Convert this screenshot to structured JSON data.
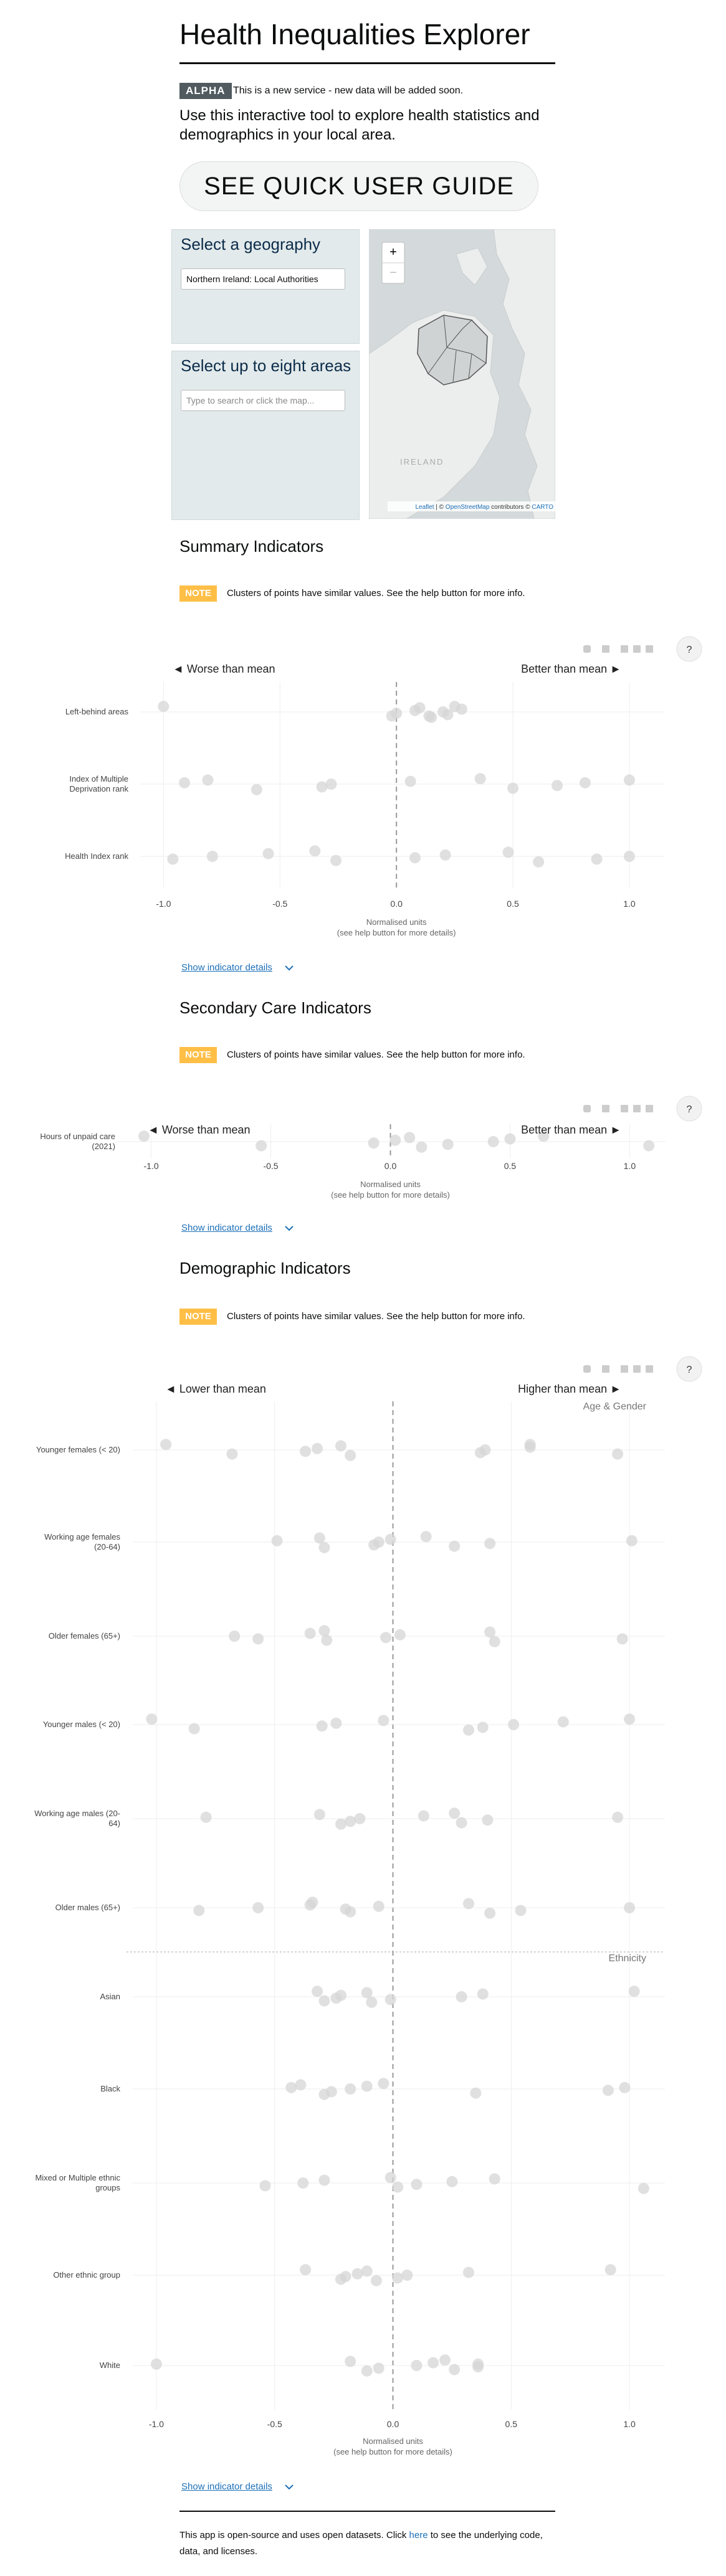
{
  "header": {
    "title": "Health Inequalities Explorer",
    "badge": "ALPHA",
    "notice": "This is a new service - new data will be added soon.",
    "intro": "Use this interactive tool to explore health statistics and demographics in your local area."
  },
  "guide_button": "SEE QUICK USER GUIDE",
  "geography": {
    "title": "Select a geography",
    "selected": "Northern Ireland: Local Authorities"
  },
  "areas": {
    "title": "Select up to eight areas",
    "placeholder": "Type to search or click the map..."
  },
  "map": {
    "zoom_in": "+",
    "zoom_out": "−",
    "country_label": "IRELAND",
    "attribution": [
      "Leaflet",
      " | © ",
      "OpenStreetMap",
      " contributors © ",
      "CARTO"
    ]
  },
  "sections": [
    {
      "title": "Summary Indicators",
      "note_badge": "NOTE",
      "note": "Clusters of points have similar values. See the help button for more info.",
      "help": "?",
      "details": "Show indicator details",
      "chart": {
        "type": "scatter",
        "left_label": "◄ Worse than mean",
        "right_label": "Better than mean ►",
        "color": "#d6d6d6",
        "zero_line": true,
        "grid": true,
        "xlim": [
          -1.1,
          1.15
        ],
        "xticks": [
          {
            "value": -1,
            "label": "-1.0"
          },
          -0.5,
          {
            "value": 0,
            "label": "0.0"
          },
          0.5,
          {
            "value": 1,
            "label": "1.0"
          }
        ],
        "xlabel": [
          "Normalised units",
          "(see help button for more details)"
        ],
        "groups": [
          {
            "categories": [
              "Left-behind areas",
              "Index of Multiple Deprivation rank",
              "Health Index rank"
            ],
            "values": [
              [
                -1.0,
                -0.02,
                0.0,
                0.08,
                0.1,
                0.15,
                0.22,
                0.2,
                0.28,
                0.25,
                0.14
              ],
              [
                -0.91,
                -0.81,
                -0.6,
                -0.32,
                -0.28,
                0.06,
                0.36,
                0.5,
                0.69,
                0.81,
                1.0
              ],
              [
                -0.96,
                -0.79,
                -0.55,
                -0.35,
                -0.26,
                0.08,
                0.21,
                0.48,
                0.61,
                0.86,
                1.0
              ]
            ]
          }
        ]
      }
    },
    {
      "title": "Secondary Care Indicators",
      "note_badge": "NOTE",
      "note": "Clusters of points have similar values. See the help button for more info.",
      "help": "?",
      "details": "Show indicator details",
      "chart": {
        "type": "scatter",
        "left_label": "◄ Worse than mean",
        "right_label": "Better than mean ►",
        "color": "#d6d6d6",
        "zero_line": true,
        "grid": true,
        "xlim": [
          -1.15,
          1.15
        ],
        "xticks": [
          {
            "value": -1,
            "label": "-1.0"
          },
          -0.5,
          {
            "value": 0,
            "label": "0.0"
          },
          0.5,
          {
            "value": 1,
            "label": "1.0"
          }
        ],
        "xlabel": [
          "Normalised units",
          "(see help button for more details)"
        ],
        "groups": [
          {
            "categories": [
              "Hours of unpaid care (2021)"
            ],
            "values": [
              [
                -1.03,
                -0.54,
                -0.07,
                0.02,
                0.08,
                0.13,
                0.24,
                0.43,
                0.5,
                0.64,
                1.08
              ]
            ]
          }
        ]
      }
    },
    {
      "title": "Demographic Indicators",
      "note_badge": "NOTE",
      "note": "Clusters of points have similar values. See the help button for more info.",
      "help": "?",
      "details": "Show indicator details",
      "chart": {
        "type": "scatter",
        "left_label": "◄ Lower than mean",
        "right_label": "Higher than mean ►",
        "color": "#d6d6d6",
        "zero_line": true,
        "grid": true,
        "xlim": [
          -1.1,
          1.15
        ],
        "xticks": [
          {
            "value": -1,
            "label": "-1.0"
          },
          -0.5,
          {
            "value": 0,
            "label": "0.0"
          },
          0.5,
          {
            "value": 1,
            "label": "1.0"
          }
        ],
        "xlabel": [
          "Normalised units",
          "(see help button for more details)"
        ],
        "groups": [
          {
            "label": "Age & Gender",
            "categories": [
              "Younger females (< 20)",
              "Working age females (20-64)",
              "Older females (65+)",
              "Younger males (< 20)",
              "Working age males (20-64)",
              "Older males (65+)"
            ],
            "values": [
              [
                -0.96,
                -0.68,
                -0.37,
                -0.32,
                -0.22,
                -0.18,
                0.37,
                0.39,
                0.58,
                0.58,
                0.95
              ],
              [
                -0.49,
                -0.31,
                -0.29,
                -0.08,
                -0.06,
                -0.01,
                0.14,
                0.26,
                0.41,
                1.01
              ],
              [
                -0.57,
                -0.67,
                -0.35,
                -0.29,
                -0.28,
                -0.03,
                0.03,
                0.41,
                0.43,
                0.97
              ],
              [
                -1.02,
                -0.84,
                -0.3,
                -0.24,
                -0.04,
                0.32,
                0.38,
                0.51,
                0.72,
                1.0
              ],
              [
                -0.79,
                -0.31,
                -0.22,
                -0.18,
                -0.14,
                0.13,
                0.26,
                0.29,
                0.4,
                0.95
              ],
              [
                -0.82,
                -0.57,
                -0.35,
                -0.34,
                -0.18,
                -0.2,
                -0.06,
                0.32,
                0.41,
                0.54,
                1.0
              ]
            ]
          },
          {
            "label": "Ethnicity",
            "categories": [
              "Asian",
              "Black",
              "Mixed or Multiple ethnic groups",
              "Other ethnic group",
              "White"
            ],
            "values": [
              [
                -0.32,
                -0.29,
                -0.24,
                -0.22,
                -0.11,
                -0.09,
                -0.01,
                0.29,
                0.38,
                1.02
              ],
              [
                -0.43,
                -0.39,
                -0.29,
                -0.26,
                -0.18,
                -0.11,
                -0.04,
                0.35,
                0.91,
                0.98
              ],
              [
                -0.54,
                -0.38,
                -0.29,
                -0.01,
                0.02,
                0.1,
                0.25,
                0.43,
                1.06
              ],
              [
                -0.37,
                -0.22,
                -0.2,
                -0.15,
                -0.11,
                -0.07,
                0.02,
                0.06,
                0.32,
                0.92
              ],
              [
                -1.0,
                -0.18,
                -0.11,
                -0.06,
                0.1,
                0.17,
                0.22,
                0.26,
                0.36,
                0.36
              ]
            ]
          }
        ]
      }
    }
  ],
  "footer": {
    "before": "This app is open-source and uses open datasets. Click ",
    "link": "here",
    "after": " to see the underlying code, data, and licenses."
  }
}
